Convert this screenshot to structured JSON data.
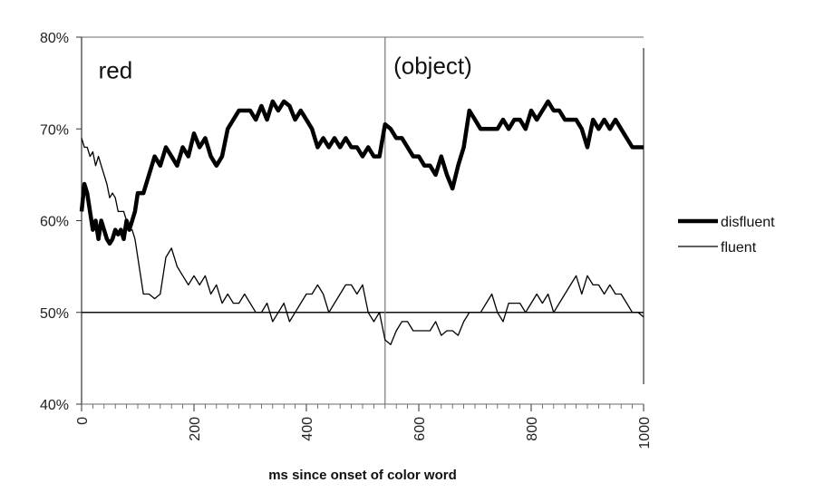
{
  "chart_data": {
    "type": "line",
    "xlabel": "ms since onset of color word",
    "ylabel": "",
    "xlim": [
      0,
      1000
    ],
    "ylim": [
      40,
      80
    ],
    "x_ticks": [
      0,
      200,
      400,
      600,
      800,
      1000
    ],
    "y_ticks": [
      40,
      50,
      60,
      70,
      80
    ],
    "y_tick_labels": [
      "40%",
      "50%",
      "60%",
      "70%",
      "80%"
    ],
    "reference_line_y": 50,
    "divider_x": 540,
    "annotations": [
      {
        "text": "red",
        "x": 30,
        "y": 75.5
      },
      {
        "text": "(object)",
        "x": 555,
        "y": 76
      }
    ],
    "legend_position": "right",
    "series": [
      {
        "name": "disfluent",
        "style": "thick",
        "color": "#000000",
        "x": [
          0,
          5,
          10,
          15,
          20,
          25,
          30,
          35,
          40,
          45,
          50,
          55,
          60,
          65,
          70,
          75,
          80,
          85,
          90,
          95,
          100,
          110,
          120,
          130,
          140,
          150,
          160,
          170,
          180,
          190,
          200,
          210,
          220,
          230,
          240,
          250,
          260,
          270,
          280,
          290,
          300,
          310,
          320,
          330,
          340,
          350,
          360,
          370,
          380,
          390,
          400,
          410,
          420,
          430,
          440,
          450,
          460,
          470,
          480,
          490,
          500,
          510,
          520,
          530,
          540,
          550,
          560,
          570,
          580,
          590,
          600,
          610,
          620,
          630,
          640,
          650,
          660,
          670,
          680,
          690,
          700,
          710,
          720,
          730,
          740,
          750,
          760,
          770,
          780,
          790,
          800,
          810,
          820,
          830,
          840,
          850,
          860,
          870,
          880,
          890,
          900,
          910,
          920,
          930,
          940,
          950,
          960,
          970,
          980,
          990,
          1000
        ],
        "values": [
          61,
          64,
          63,
          61,
          59,
          60,
          58,
          60,
          59,
          58,
          57.5,
          58,
          59,
          58.5,
          59,
          58,
          60,
          59,
          60,
          61,
          63,
          63,
          65,
          67,
          66,
          68,
          67,
          66,
          68,
          67,
          69.5,
          68,
          69,
          67,
          66,
          67,
          70,
          71,
          72,
          72,
          72,
          71,
          72.5,
          71,
          73,
          72,
          73,
          72.5,
          71,
          72,
          71,
          70,
          68,
          69,
          68,
          69,
          68,
          69,
          68,
          68,
          67,
          68,
          67,
          67,
          70.5,
          70,
          69,
          69,
          68,
          67,
          67,
          66,
          66,
          65,
          67,
          65,
          63.5,
          66,
          68,
          72,
          71,
          70,
          70,
          70,
          70,
          71,
          70,
          71,
          71,
          70,
          72,
          71,
          72,
          73,
          72,
          72,
          71,
          71,
          71,
          70,
          68,
          71,
          70,
          71,
          70,
          71,
          70,
          69,
          68,
          68,
          68
        ]
      },
      {
        "name": "fluent",
        "style": "thin",
        "color": "#000000",
        "x": [
          0,
          5,
          10,
          15,
          20,
          25,
          30,
          35,
          40,
          45,
          50,
          55,
          60,
          65,
          70,
          75,
          80,
          85,
          90,
          95,
          100,
          110,
          120,
          130,
          140,
          150,
          160,
          170,
          180,
          190,
          200,
          210,
          220,
          230,
          240,
          250,
          260,
          270,
          280,
          290,
          300,
          310,
          320,
          330,
          340,
          350,
          360,
          370,
          380,
          390,
          400,
          410,
          420,
          430,
          440,
          450,
          460,
          470,
          480,
          490,
          500,
          510,
          520,
          530,
          540,
          550,
          560,
          570,
          580,
          590,
          600,
          610,
          620,
          630,
          640,
          650,
          660,
          670,
          680,
          690,
          700,
          710,
          720,
          730,
          740,
          750,
          760,
          770,
          780,
          790,
          800,
          810,
          820,
          830,
          840,
          850,
          860,
          870,
          880,
          890,
          900,
          910,
          920,
          930,
          940,
          950,
          960,
          970,
          980,
          990,
          1000
        ],
        "values": [
          69,
          68,
          68,
          67,
          67.5,
          66,
          67,
          66,
          65,
          64,
          62.5,
          63,
          62.5,
          61,
          61,
          61,
          60,
          59,
          59,
          58,
          56,
          52,
          52,
          51.5,
          52,
          56,
          57,
          55,
          54,
          53,
          54,
          53,
          54,
          52,
          53,
          51,
          52,
          51,
          51,
          52,
          51,
          50,
          50,
          51,
          49,
          50,
          51,
          49,
          50,
          51,
          52,
          52,
          53,
          52,
          50,
          51,
          52,
          53,
          53,
          52,
          53,
          50,
          49,
          50,
          47,
          46.5,
          48,
          49,
          49,
          48,
          48,
          48,
          48,
          49,
          47.5,
          48,
          48,
          47.5,
          49,
          50,
          50,
          50,
          51,
          52,
          50,
          49,
          51,
          51,
          51,
          50,
          51,
          52,
          51,
          52,
          50,
          51,
          52,
          53,
          54,
          52,
          54,
          53,
          53,
          52,
          53,
          52,
          52,
          51,
          50,
          50,
          49.5
        ]
      }
    ]
  }
}
